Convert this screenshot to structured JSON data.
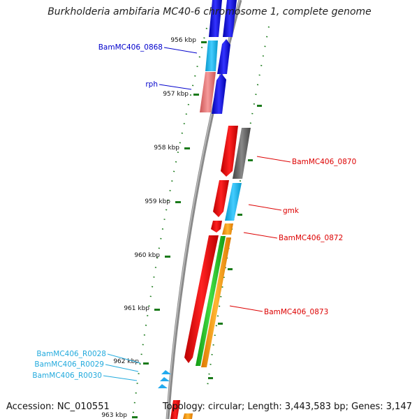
{
  "title": "Burkholderia ambifaria MC40-6 chromosome 1, complete genome",
  "accession_text": "Accession: NC_010551",
  "summary_text": "Topology: circular; Length: 3,443,583 bp; Genes: 3,147",
  "colors": {
    "backbone": "#8a8a8a",
    "tick": "#1a7a1a",
    "forward": "#0000ee",
    "reverse": "#ee0000",
    "gray": "#606060",
    "cyan": "#1ab0e8",
    "pink": "#f08080",
    "green": "#22bb22",
    "orange": "#ff9900",
    "rna": "#22aaee"
  },
  "scale_labels": [
    {
      "label": "956 kbp"
    },
    {
      "label": "957 kbp"
    },
    {
      "label": "958 kbp"
    },
    {
      "label": "959 kbp"
    },
    {
      "label": "960 kbp"
    },
    {
      "label": "961 kbp"
    },
    {
      "label": "962 kbp"
    },
    {
      "label": "963 kbp"
    }
  ],
  "gene_labels": [
    {
      "name": "BamMC406_0868",
      "color": "#0000cc"
    },
    {
      "name": "rph",
      "color": "#0000cc"
    },
    {
      "name": "BamMC406_0870",
      "color": "#dd0000"
    },
    {
      "name": "gmk",
      "color": "#dd0000"
    },
    {
      "name": "BamMC406_0872",
      "color": "#dd0000"
    },
    {
      "name": "BamMC406_0873",
      "color": "#dd0000"
    },
    {
      "name": "BamMC406_R0028",
      "color": "#22aadd"
    },
    {
      "name": "BamMC406_R0029",
      "color": "#22aadd"
    },
    {
      "name": "BamMC406_R0030",
      "color": "#22aadd"
    }
  ]
}
